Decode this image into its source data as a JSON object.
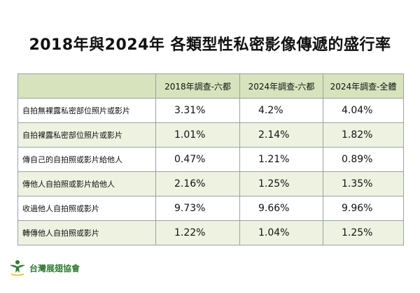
{
  "title": "2018年與2024年 各類型性私密影像傳遞的盛行率",
  "table": {
    "headers": [
      "",
      "2018年調查-六都",
      "2024年調查-六都",
      "2024年調查-全體"
    ],
    "rows": [
      {
        "label": "自拍無裸露私密部位照片或影片",
        "v2018": "3.31%",
        "v2024_six": "4.2%",
        "v2024_all": "4.04%"
      },
      {
        "label": "自拍裸露私密部位照片或影片",
        "v2018": "1.01%",
        "v2024_six": "2.14%",
        "v2024_all": "1.82%"
      },
      {
        "label": "傳自己的自拍照或影片給他人",
        "v2018": "0.47%",
        "v2024_six": "1.21%",
        "v2024_all": "0.89%"
      },
      {
        "label": "傳他人自拍照或影片給他人",
        "v2018": "2.16%",
        "v2024_six": "1.25%",
        "v2024_all": "1.35%"
      },
      {
        "label": "收過他人自拍照或影片",
        "v2018": "9.73%",
        "v2024_six": "9.66%",
        "v2024_all": "9.96%"
      },
      {
        "label": "轉傳他人自拍照或影片",
        "v2018": "1.22%",
        "v2024_six": "1.04%",
        "v2024_all": "1.25%"
      }
    ]
  },
  "footer": {
    "org_name": "台灣展翅協會",
    "logo_icon": "winged-figure-logo-icon"
  },
  "colors": {
    "header_bg": "#d6e3bc",
    "alt_row_bg": "#eef3e1",
    "brand_green": "#2e7d32"
  }
}
